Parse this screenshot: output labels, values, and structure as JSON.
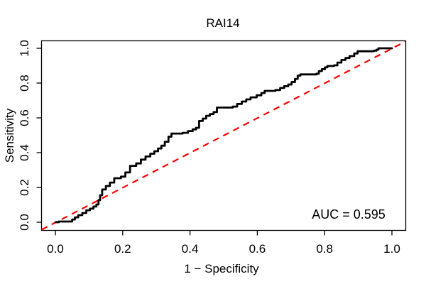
{
  "title": "RAI14",
  "annotation": "AUC = 0.595",
  "chart_data": {
    "type": "line",
    "subtype": "roc-step-curve",
    "title": "RAI14",
    "xlabel": "1 − Specificity",
    "ylabel": "Sensitivity",
    "xlim": [
      0,
      1
    ],
    "ylim": [
      0,
      1
    ],
    "grid": false,
    "x_ticks": [
      "0.0",
      "0.2",
      "0.4",
      "0.6",
      "0.8",
      "1.0"
    ],
    "y_ticks": [
      "0.0",
      "0.2",
      "0.4",
      "0.6",
      "0.8",
      "1.0"
    ],
    "auc": 0.595,
    "auc_label": "AUC = 0.595",
    "curve_color": "#000000",
    "reference_line": {
      "from": [
        0,
        0
      ],
      "to": [
        1,
        1
      ],
      "color": "#ff0000",
      "style": "dashed"
    },
    "roc_points": [
      [
        0.0,
        0.0
      ],
      [
        0.01,
        0.004
      ],
      [
        0.042,
        0.004
      ],
      [
        0.05,
        0.016
      ],
      [
        0.058,
        0.028
      ],
      [
        0.068,
        0.041
      ],
      [
        0.08,
        0.053
      ],
      [
        0.092,
        0.069
      ],
      [
        0.103,
        0.078
      ],
      [
        0.113,
        0.09
      ],
      [
        0.122,
        0.102
      ],
      [
        0.128,
        0.127
      ],
      [
        0.133,
        0.155
      ],
      [
        0.139,
        0.188
      ],
      [
        0.15,
        0.208
      ],
      [
        0.162,
        0.228
      ],
      [
        0.175,
        0.253
      ],
      [
        0.195,
        0.262
      ],
      [
        0.208,
        0.286
      ],
      [
        0.222,
        0.324
      ],
      [
        0.24,
        0.338
      ],
      [
        0.254,
        0.36
      ],
      [
        0.268,
        0.378
      ],
      [
        0.282,
        0.394
      ],
      [
        0.294,
        0.408
      ],
      [
        0.305,
        0.424
      ],
      [
        0.315,
        0.44
      ],
      [
        0.325,
        0.463
      ],
      [
        0.336,
        0.492
      ],
      [
        0.345,
        0.51
      ],
      [
        0.378,
        0.514
      ],
      [
        0.394,
        0.524
      ],
      [
        0.408,
        0.534
      ],
      [
        0.418,
        0.543
      ],
      [
        0.427,
        0.582
      ],
      [
        0.438,
        0.596
      ],
      [
        0.448,
        0.612
      ],
      [
        0.459,
        0.622
      ],
      [
        0.47,
        0.633
      ],
      [
        0.48,
        0.659
      ],
      [
        0.527,
        0.665
      ],
      [
        0.54,
        0.68
      ],
      [
        0.554,
        0.694
      ],
      [
        0.567,
        0.706
      ],
      [
        0.58,
        0.718
      ],
      [
        0.598,
        0.73
      ],
      [
        0.612,
        0.743
      ],
      [
        0.622,
        0.755
      ],
      [
        0.654,
        0.76
      ],
      [
        0.668,
        0.772
      ],
      [
        0.68,
        0.782
      ],
      [
        0.692,
        0.792
      ],
      [
        0.702,
        0.806
      ],
      [
        0.712,
        0.824
      ],
      [
        0.72,
        0.843
      ],
      [
        0.728,
        0.85
      ],
      [
        0.776,
        0.854
      ],
      [
        0.783,
        0.869
      ],
      [
        0.792,
        0.88
      ],
      [
        0.801,
        0.89
      ],
      [
        0.808,
        0.898
      ],
      [
        0.828,
        0.902
      ],
      [
        0.838,
        0.918
      ],
      [
        0.85,
        0.933
      ],
      [
        0.862,
        0.944
      ],
      [
        0.874,
        0.955
      ],
      [
        0.888,
        0.97
      ],
      [
        0.898,
        0.983
      ],
      [
        0.946,
        0.986
      ],
      [
        0.954,
        0.992
      ],
      [
        0.96,
        1.0
      ],
      [
        1.0,
        1.0
      ]
    ]
  }
}
